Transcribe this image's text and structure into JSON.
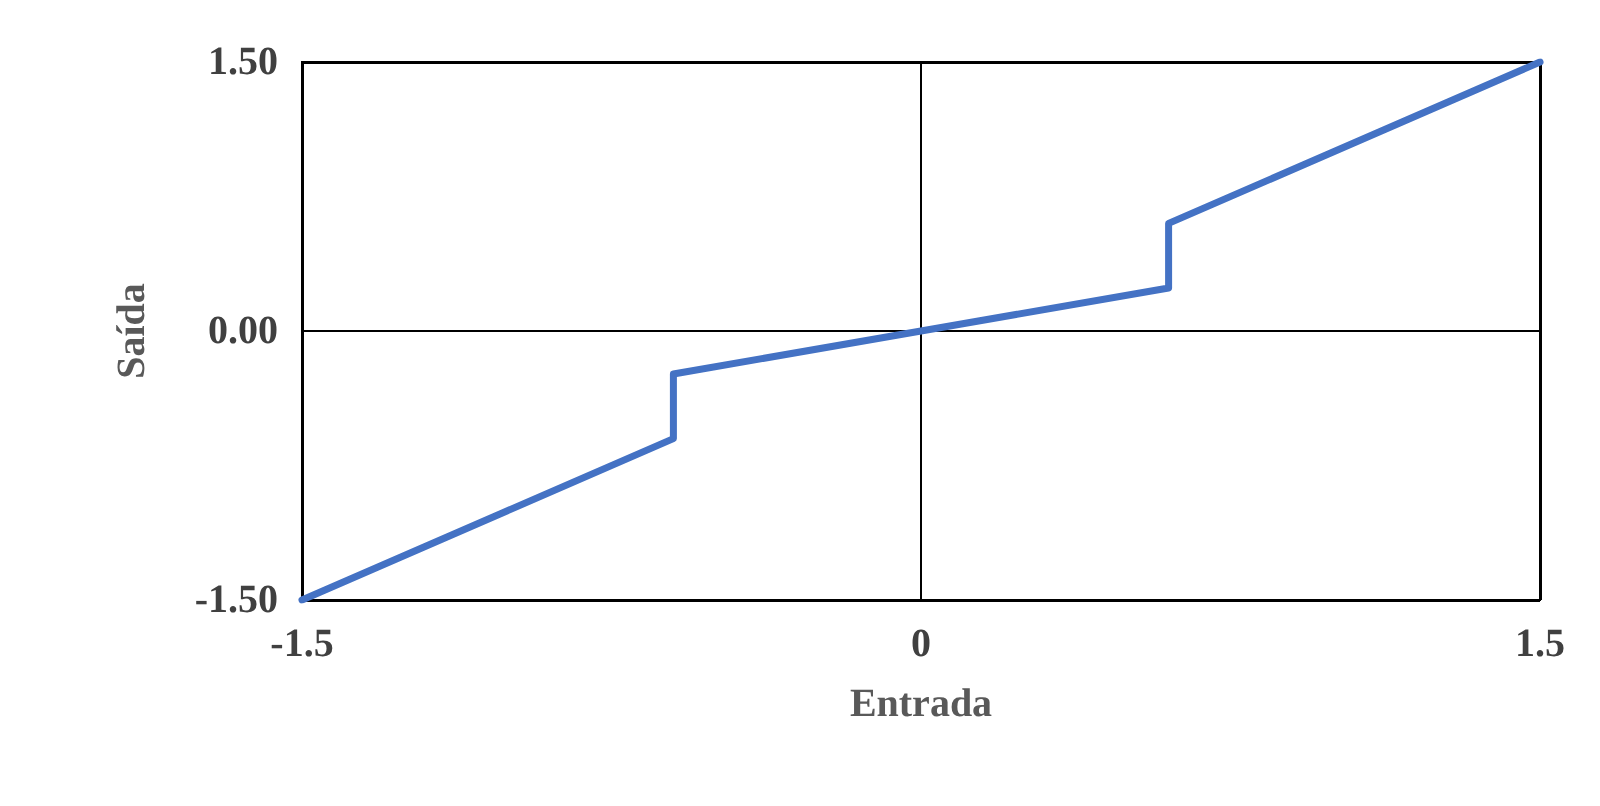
{
  "chart_data": {
    "type": "line",
    "xlabel": "Entrada",
    "ylabel": "Saída",
    "series": [
      {
        "color": "#4472c4",
        "x": [
          -1.5,
          -0.6,
          -0.6,
          0,
          0.6,
          0.6,
          1.5
        ],
        "values": [
          -1.5,
          -0.6,
          -0.24,
          0,
          0.24,
          0.6,
          1.5
        ]
      }
    ],
    "xlim": [
      -1.5,
      1.5
    ],
    "xticks": [
      -1.5,
      0,
      1.5
    ],
    "ylim": [
      -1.5,
      1.5
    ],
    "yticks": [
      {
        "value": -1.5,
        "label": "-1.50"
      },
      {
        "value": 0,
        "label": "0.00"
      },
      {
        "value": 1.5,
        "label": "1.50"
      }
    ],
    "grid": true,
    "marker": "none",
    "line_style": "solid"
  }
}
